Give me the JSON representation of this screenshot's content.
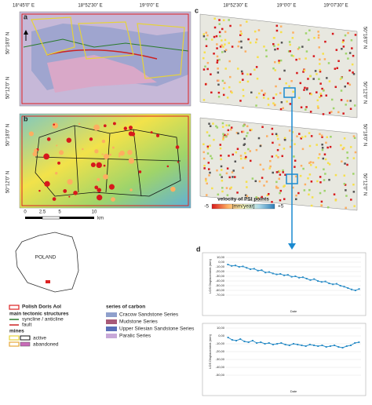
{
  "figure": {
    "panel_a": {
      "label": "a",
      "top_labels": [
        "18°45'0\" E",
        "18°52'30\" E",
        "19°0'0\" E"
      ],
      "side_labels": [
        "50°18'0\" N",
        "50°12'0\" N"
      ]
    },
    "panel_b": {
      "label": "b",
      "side_labels": [
        "50°18'0\" N",
        "50°12'0\" N"
      ]
    },
    "panel_c": {
      "label": "c",
      "top_labels": [
        "18°52'30\" E",
        "19°0'0\" E",
        "19°07'30\" E"
      ],
      "side_labels": [
        "50°18'0\" N",
        "50°12'0\" N"
      ],
      "side_labels_lower": [
        "50°18'0\" N",
        "50°12'0\" N"
      ]
    },
    "scale": {
      "ticks": [
        "0",
        "2.5",
        "5",
        "10"
      ],
      "unit": "km"
    },
    "inset": {
      "label": "POLAND"
    },
    "legend": {
      "aoi": "Polish Doris AoI",
      "tectonic": "main tectonic structures",
      "syncline": "syncline / anticline",
      "fault": "fault",
      "mines": "mines",
      "active": "active",
      "abandoned": "abandoned",
      "carbon_title": "series of carbon",
      "carbon": [
        "Cracow Sandstone Series",
        "Mudstone Series",
        "Upper Silesian Sandstone Series",
        "Paralic Series"
      ]
    },
    "colorbar": {
      "title": "velocity of PSI points",
      "min": "-5",
      "unit": "[mm/year]",
      "max": "+5"
    },
    "panel_d": {
      "label": "d",
      "charts": [
        {
          "type": "line",
          "ylabel": "LOS Displacement (mm)",
          "xlabel": "Date",
          "color": "#2f8fc8",
          "ylim": [
            -70,
            10
          ],
          "yticks": [
            {
              "value": 10,
              "label": "10,00"
            },
            {
              "value": 0,
              "label": "0,00"
            },
            {
              "value": -10,
              "label": "-10,00"
            },
            {
              "value": -20,
              "label": "-20,00"
            },
            {
              "value": -30,
              "label": "-30,00"
            },
            {
              "value": -40,
              "label": "-40,00"
            },
            {
              "value": -50,
              "label": "-50,00"
            },
            {
              "value": -60,
              "label": "-60,00"
            },
            {
              "value": -70,
              "label": "-70,00"
            }
          ],
          "values": [
            -5,
            -8,
            -7,
            -10,
            -9,
            -12,
            -15,
            -14,
            -18,
            -17,
            -22,
            -21,
            -24,
            -26,
            -25,
            -28,
            -27,
            -31,
            -30,
            -33,
            -32,
            -35,
            -38,
            -36,
            -40,
            -42,
            -41,
            -45,
            -47,
            -46,
            -50,
            -52,
            -55,
            -58,
            -60,
            -57
          ]
        },
        {
          "type": "line",
          "ylabel": "LOS Displacement (mm)",
          "xlabel": "Date",
          "color": "#2f8fc8",
          "ylim": [
            -50,
            10
          ],
          "yticks": [
            {
              "value": 10,
              "label": "10,00"
            },
            {
              "value": 0,
              "label": "0,00"
            },
            {
              "value": -10,
              "label": "-10,00"
            },
            {
              "value": -20,
              "label": "-20,00"
            },
            {
              "value": -30,
              "label": "-30,00"
            },
            {
              "value": -40,
              "label": "-40,00"
            },
            {
              "value": -50,
              "label": "-50,00"
            }
          ],
          "values": [
            -2,
            -5,
            -6,
            -4,
            -7,
            -8,
            -6,
            -9,
            -8,
            -10,
            -9,
            -11,
            -10,
            -9,
            -11,
            -12,
            -10,
            -11,
            -12,
            -13,
            -11,
            -12,
            -13,
            -12,
            -14,
            -13,
            -12,
            -14,
            -15,
            -13,
            -12,
            -9,
            -8
          ]
        }
      ]
    }
  }
}
